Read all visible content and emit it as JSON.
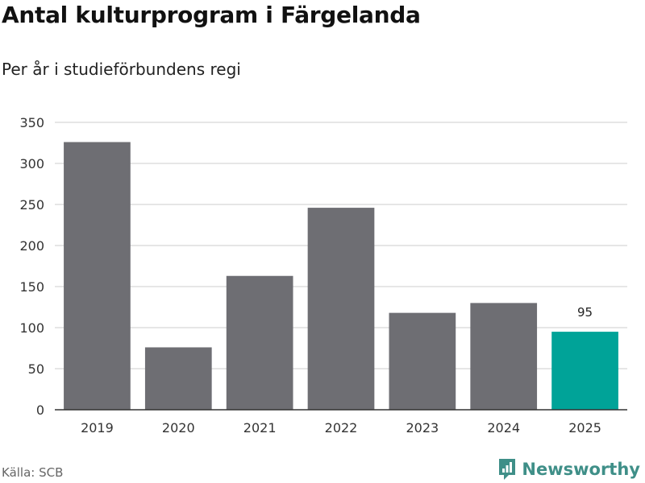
{
  "title": "Antal kulturprogram i Färgelanda",
  "subtitle": "Per år i studieförbundens regi",
  "source": "Källa: SCB",
  "brand": {
    "name": "Newsworthy",
    "icon": "newsworthy-logo-icon"
  },
  "colors": {
    "bar": "#6e6e73",
    "highlight": "#00a398",
    "grid": "#dddddd",
    "axis": "#333333",
    "brand": "#3f8f88"
  },
  "chart_data": {
    "type": "bar",
    "title": "Antal kulturprogram i Färgelanda",
    "subtitle": "Per år i studieförbundens regi",
    "xlabel": "",
    "ylabel": "",
    "categories": [
      "2019",
      "2020",
      "2021",
      "2022",
      "2023",
      "2024",
      "2025"
    ],
    "values": [
      326,
      76,
      163,
      246,
      118,
      130,
      95
    ],
    "highlight_index": 6,
    "data_labels": [
      {
        "index": 6,
        "text": "95"
      }
    ],
    "ylim": [
      0,
      350
    ],
    "yticks": [
      0,
      50,
      100,
      150,
      200,
      250,
      300,
      350
    ],
    "grid": true,
    "legend": "none"
  }
}
